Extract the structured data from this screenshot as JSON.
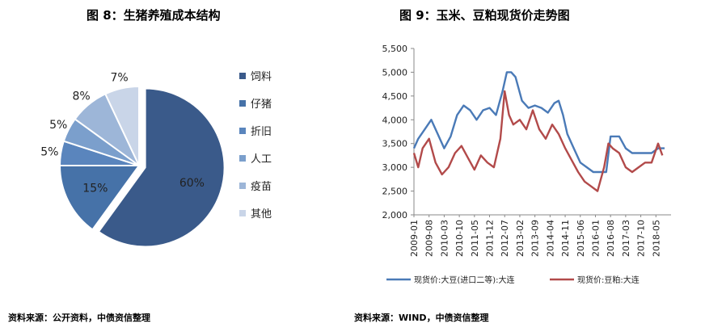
{
  "colors": {
    "pie": [
      "#3a5a8a",
      "#4672a8",
      "#5a85bd",
      "#7b9fcc",
      "#9db6d8",
      "#c9d5e8"
    ],
    "line_corn": "#4a7ab7",
    "line_meal": "#b24a4a",
    "axis": "#888888"
  },
  "left": {
    "title": "图 8：生猪养殖成本结构",
    "source": "资料来源：公开资料，中债资信整理"
  },
  "right": {
    "title": "图 9：玉米、豆粕现货价走势图",
    "source": "资料来源：WIND，中债资信整理"
  },
  "chart_data": [
    {
      "type": "pie",
      "title": "图 8：生猪养殖成本结构",
      "categories": [
        "饲料",
        "仔猪",
        "折旧",
        "人工",
        "疫苗",
        "其他"
      ],
      "values": [
        60,
        15,
        5,
        5,
        8,
        7
      ],
      "labels": [
        "60%",
        "15%",
        "5%",
        "5%",
        "8%",
        "7%"
      ],
      "exploded": "饲料",
      "legend": "right"
    },
    {
      "type": "line",
      "title": "图 9：玉米、豆粕现货价走势图",
      "x_ticks": [
        "2009-01",
        "2009-08",
        "2010-03",
        "2010-10",
        "2011-05",
        "2011-12",
        "2012-07",
        "2013-02",
        "2013-09",
        "2014-04",
        "2014-11",
        "2015-06",
        "2016-01",
        "2016-08",
        "2017-03",
        "2017-10",
        "2018-05"
      ],
      "ylim": [
        2000,
        5500
      ],
      "y_ticks": [
        "2,000",
        "2,500",
        "3,000",
        "3,500",
        "4,000",
        "4,500",
        "5,000",
        "5,500"
      ],
      "legend": "bottom",
      "series": [
        {
          "name": "现货价:大豆(进口二等):大连",
          "x": [
            "2009-01",
            "2009-03",
            "2009-06",
            "2009-09",
            "2009-12",
            "2010-03",
            "2010-06",
            "2010-09",
            "2010-12",
            "2011-03",
            "2011-06",
            "2011-09",
            "2011-12",
            "2012-03",
            "2012-06",
            "2012-08",
            "2012-10",
            "2012-12",
            "2013-03",
            "2013-06",
            "2013-09",
            "2013-12",
            "2014-03",
            "2014-06",
            "2014-08",
            "2014-10",
            "2014-12",
            "2015-03",
            "2015-06",
            "2015-09",
            "2015-12",
            "2016-03",
            "2016-06",
            "2016-08",
            "2016-10",
            "2016-12",
            "2017-03",
            "2017-06",
            "2017-09",
            "2017-12",
            "2018-03",
            "2018-06",
            "2018-09"
          ],
          "values": [
            3400,
            3600,
            3800,
            4000,
            3700,
            3400,
            3650,
            4100,
            4300,
            4200,
            4000,
            4200,
            4250,
            4100,
            4600,
            5000,
            5000,
            4900,
            4400,
            4250,
            4300,
            4250,
            4150,
            4350,
            4400,
            4100,
            3700,
            3400,
            3100,
            3000,
            2900,
            2900,
            2900,
            3650,
            3650,
            3650,
            3400,
            3300,
            3300,
            3300,
            3300,
            3400,
            3400
          ]
        },
        {
          "name": "现货价:豆粕:大连",
          "x": [
            "2009-01",
            "2009-03",
            "2009-05",
            "2009-08",
            "2009-11",
            "2010-02",
            "2010-05",
            "2010-08",
            "2010-11",
            "2011-02",
            "2011-05",
            "2011-08",
            "2011-11",
            "2012-02",
            "2012-05",
            "2012-07",
            "2012-09",
            "2012-11",
            "2013-02",
            "2013-05",
            "2013-08",
            "2013-11",
            "2014-02",
            "2014-05",
            "2014-08",
            "2014-11",
            "2015-02",
            "2015-05",
            "2015-08",
            "2015-11",
            "2016-02",
            "2016-05",
            "2016-07",
            "2016-09",
            "2016-12",
            "2017-03",
            "2017-06",
            "2017-09",
            "2017-12",
            "2018-03",
            "2018-06",
            "2018-08"
          ],
          "values": [
            3300,
            3000,
            3400,
            3600,
            3100,
            2850,
            3000,
            3300,
            3450,
            3200,
            2950,
            3250,
            3100,
            3000,
            3600,
            4600,
            4100,
            3900,
            4000,
            3800,
            4200,
            3800,
            3600,
            3900,
            3700,
            3400,
            3150,
            2900,
            2700,
            2600,
            2500,
            3000,
            3500,
            3400,
            3300,
            3000,
            2900,
            3000,
            3100,
            3100,
            3500,
            3250
          ]
        }
      ]
    }
  ]
}
